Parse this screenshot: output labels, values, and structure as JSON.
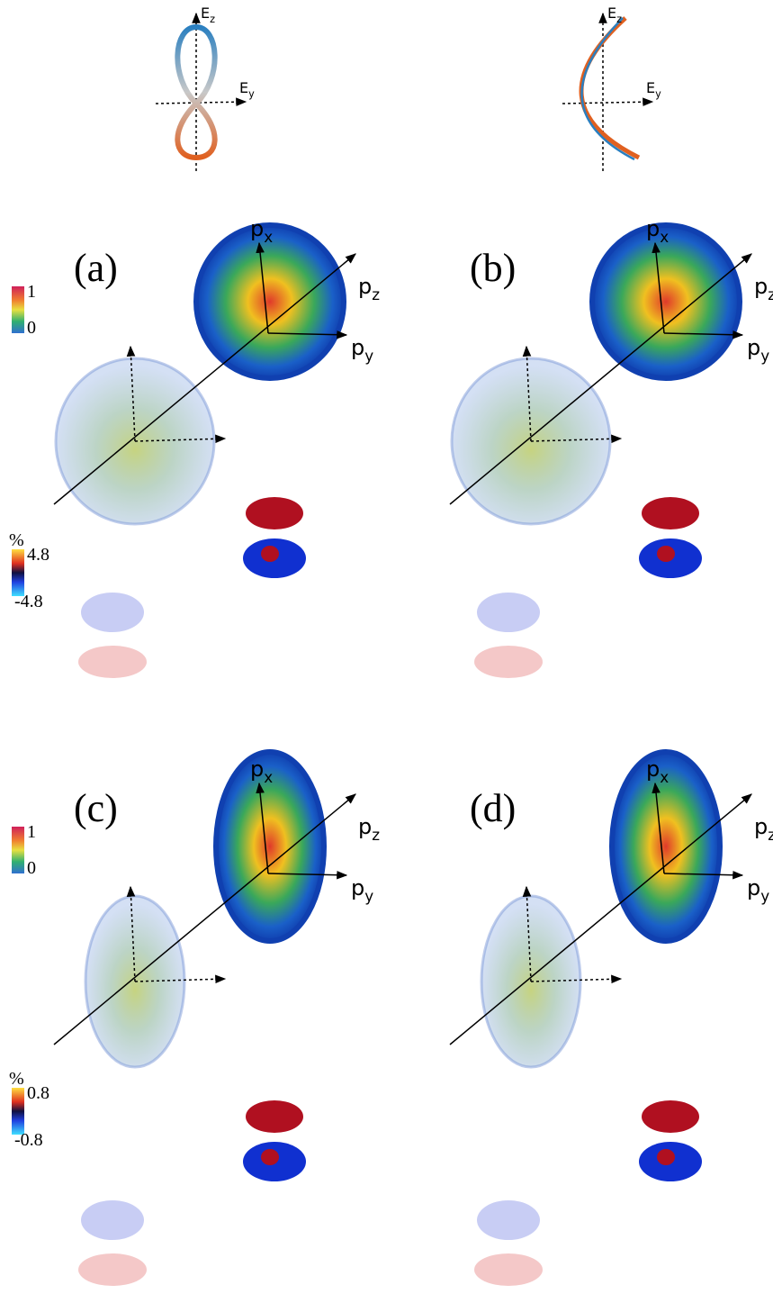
{
  "insets": [
    {
      "axes": [
        {
          "base": "E",
          "sub": "z"
        },
        {
          "base": "E",
          "sub": "y"
        }
      ]
    },
    {
      "axes": [
        {
          "base": "E",
          "sub": "z"
        },
        {
          "base": "E",
          "sub": "y"
        }
      ]
    }
  ],
  "panels": [
    {
      "label": "(a)",
      "axes": [
        {
          "base": "p",
          "sub": "x"
        },
        {
          "base": "p",
          "sub": "z"
        },
        {
          "base": "p",
          "sub": "y"
        }
      ]
    },
    {
      "label": "(b)",
      "axes": [
        {
          "base": "p",
          "sub": "x"
        },
        {
          "base": "p",
          "sub": "z"
        },
        {
          "base": "p",
          "sub": "y"
        }
      ]
    },
    {
      "label": "(c)",
      "axes": [
        {
          "base": "p",
          "sub": "x"
        },
        {
          "base": "p",
          "sub": "z"
        },
        {
          "base": "p",
          "sub": "y"
        }
      ]
    },
    {
      "label": "(d)",
      "axes": [
        {
          "base": "p",
          "sub": "x"
        },
        {
          "base": "p",
          "sub": "z"
        },
        {
          "base": "p",
          "sub": "y"
        }
      ]
    }
  ],
  "colorbars": [
    {
      "max": 1,
      "min": 0
    },
    {
      "unit": "%",
      "max": 4.8,
      "min": -4.8
    },
    {
      "max": 1,
      "min": 0
    },
    {
      "unit": "%",
      "max": 0.8,
      "min": -0.8
    }
  ]
}
